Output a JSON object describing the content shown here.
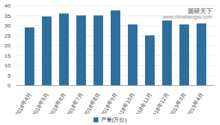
{
  "chart_data": {
    "type": "bar",
    "categories": [
      "2018年4月",
      "2018年5月",
      "2018年6月",
      "2018年7月",
      "2018年8月",
      "2018年9月",
      "2018年10月",
      "2018年11月",
      "2018年12月",
      "2019年3月",
      "2019年4月"
    ],
    "series": [
      {
        "name": "产量(万台)",
        "color": "#2e6f9e",
        "values": [
          29,
          34.5,
          36,
          35,
          35,
          37.5,
          30.5,
          25,
          32.5,
          30.5,
          31
        ]
      }
    ],
    "ylim": [
      0,
      40
    ],
    "yticks": [
      0,
      5,
      10,
      15,
      20,
      25,
      30,
      35,
      40
    ],
    "grid": true,
    "legend": "bottom",
    "annotations": [
      "观研天下",
      "www.chinabaogao.com"
    ]
  }
}
